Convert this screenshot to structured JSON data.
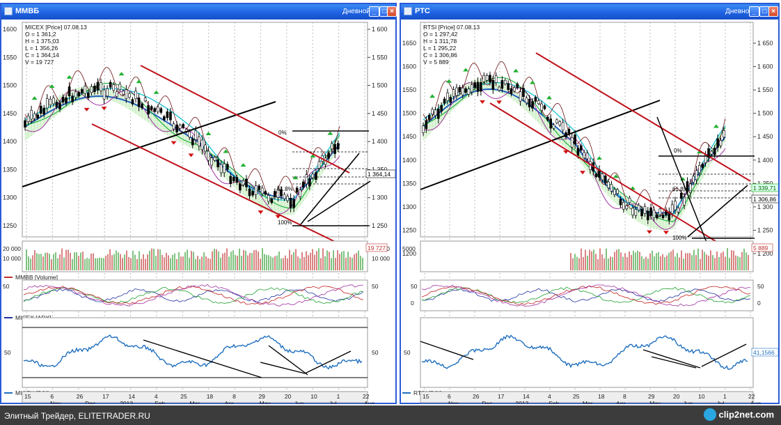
{
  "left_window": {
    "title": "ММВБ",
    "period": "Дневной",
    "price_legend": [
      "MICEX [Price] 07.08.13",
      "O = 1 361,2",
      "H = 1 375,03",
      "L = 1 356,26",
      "C = 1 364,14",
      "V = 19 727"
    ],
    "price_ticks": [
      "1 600",
      "1 550",
      "1 500",
      "1 450",
      "1 400",
      "1 350",
      "1 300",
      "1 250"
    ],
    "left_price_ticks": [
      "1600",
      "1550",
      "1500",
      "1450",
      "1400",
      "1350",
      "1300",
      "1250"
    ],
    "current_price": "1 364,14",
    "fib_labels": [
      "0%",
      "61.8%",
      "100%"
    ],
    "volume_ticks_left": [
      "20 000",
      "10 000"
    ],
    "volume_ticks_right": [
      "20 000",
      "10 000"
    ],
    "volume_current": "19 727",
    "volume_caption": "MMBB [Volume]",
    "adx_tick": "50",
    "adx_caption": "MICEX [ADX]",
    "rsi_tick": "50",
    "rsi_caption": "MICEX [RSI]",
    "days": [
      "15",
      "6",
      "26",
      "17",
      "14",
      "4",
      "25",
      "18",
      "8",
      "29",
      "20",
      "10",
      "1",
      "22"
    ],
    "months": [
      "Nov",
      "Dec",
      "2013",
      "Feb",
      "Mar",
      "Apr",
      "May",
      "Jun",
      "Jul",
      "Aug"
    ]
  },
  "right_window": {
    "title": "РТС",
    "period": "Дневной",
    "price_legend": [
      "RTSI [Price] 07.08.13",
      "O = 1 297,42",
      "H = 1 311,78",
      "L = 1 295,22",
      "C = 1 306,86",
      "V = 5 889"
    ],
    "price_ticks": [
      "1 650",
      "1 600",
      "1 550",
      "1 500",
      "1 450",
      "1 400",
      "1 350",
      "1 300",
      "1 250",
      "1 200"
    ],
    "left_price_ticks": [
      "1650",
      "1600",
      "1550",
      "1500",
      "1450",
      "1400",
      "1350",
      "1300",
      "1250",
      "1200"
    ],
    "current_price": "1 306,86",
    "current_price_2": "1 339,71",
    "fib_labels": [
      "0%",
      "61.8%",
      "100%"
    ],
    "volume_ticks_left": [
      "5000"
    ],
    "volume_ticks_right": [
      "5 000"
    ],
    "volume_current": "5 889",
    "adx_ticks_left": [
      "50",
      "0"
    ],
    "adx_ticks_right": [
      "50",
      "0"
    ],
    "rsi_tick": "50",
    "rsi_current": "41,1566",
    "rsi_caption": "RTSI [RSI]",
    "days": [
      "15",
      "6",
      "26",
      "17",
      "14",
      "4",
      "25",
      "18",
      "8",
      "29",
      "20",
      "10",
      "1",
      "22"
    ],
    "months": [
      "Nov",
      "Dec",
      "2013",
      "Feb",
      "Mar",
      "Apr",
      "May",
      "Jun",
      "Jul",
      "Aug"
    ]
  },
  "footer": {
    "text": "Элитный Трейдер, ELITETRADER.RU",
    "brand": "clip2net.com"
  },
  "colors": {
    "titlebar": "#1c5fe0",
    "price_up": "#000000",
    "channel": "#c0101a",
    "trendline": "#000000",
    "ma_blue": "#1f5fbf",
    "ma_cyan": "#30c8d8",
    "ma_green": "#20b040",
    "cloud": "#7fd07f",
    "arrow_up": "#20b030",
    "arrow_down": "#d01010",
    "volume": "#c03030",
    "rsi": "#1f6fbf"
  }
}
